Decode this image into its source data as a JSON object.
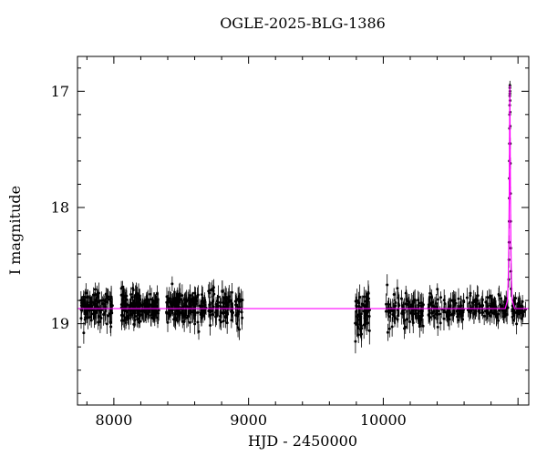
{
  "chart_data": {
    "type": "scatter",
    "title": "OGLE-2025-BLG-1386",
    "xlabel": "HJD - 2450000",
    "ylabel": "I magnitude",
    "xlim": [
      7730,
      11080
    ],
    "ylim": [
      16.7,
      19.7
    ],
    "y_axis_inverted": true,
    "grid": false,
    "point_color": "#000000",
    "model_color": "#ff00ff",
    "frame_color": "#000000",
    "x_minor_step": 200,
    "y_minor_step": 0.2,
    "x_major_ticks": [
      {
        "value": 8000,
        "label": "8000"
      },
      {
        "value": 9000,
        "label": "9000"
      },
      {
        "value": 10000,
        "label": "10000"
      },
      {
        "value": 11000,
        "label": ""
      }
    ],
    "y_major_ticks": [
      {
        "value": 17,
        "label": "17"
      },
      {
        "value": 18,
        "label": "18"
      },
      {
        "value": 19,
        "label": "19"
      }
    ],
    "baseline_mag": 18.87,
    "clusters": [
      {
        "x_min": 7755,
        "x_max": 7990,
        "n": 120,
        "mean_mag": 18.86,
        "sigma_mag": 0.065,
        "err_min": 0.05,
        "err_max": 0.1
      },
      {
        "x_min": 8055,
        "x_max": 8205,
        "n": 100,
        "mean_mag": 18.85,
        "sigma_mag": 0.07,
        "err_min": 0.05,
        "err_max": 0.1
      },
      {
        "x_min": 8210,
        "x_max": 8335,
        "n": 70,
        "mean_mag": 18.86,
        "sigma_mag": 0.06,
        "err_min": 0.05,
        "err_max": 0.1
      },
      {
        "x_min": 8385,
        "x_max": 8545,
        "n": 85,
        "mean_mag": 18.85,
        "sigma_mag": 0.065,
        "err_min": 0.05,
        "err_max": 0.1
      },
      {
        "x_min": 8550,
        "x_max": 8685,
        "n": 70,
        "mean_mag": 18.86,
        "sigma_mag": 0.06,
        "err_min": 0.05,
        "err_max": 0.1
      },
      {
        "x_min": 8700,
        "x_max": 8885,
        "n": 85,
        "mean_mag": 18.85,
        "sigma_mag": 0.065,
        "err_min": 0.05,
        "err_max": 0.1
      },
      {
        "x_min": 8900,
        "x_max": 8955,
        "n": 22,
        "mean_mag": 18.86,
        "sigma_mag": 0.1,
        "err_min": 0.06,
        "err_max": 0.11
      },
      {
        "x_min": 9790,
        "x_max": 9900,
        "n": 60,
        "mean_mag": 18.93,
        "sigma_mag": 0.12,
        "err_min": 0.06,
        "err_max": 0.12
      },
      {
        "x_min": 10020,
        "x_max": 10300,
        "n": 100,
        "mean_mag": 18.88,
        "sigma_mag": 0.07,
        "err_min": 0.05,
        "err_max": 0.1
      },
      {
        "x_min": 10330,
        "x_max": 10600,
        "n": 90,
        "mean_mag": 18.87,
        "sigma_mag": 0.06,
        "err_min": 0.05,
        "err_max": 0.1
      },
      {
        "x_min": 10620,
        "x_max": 10845,
        "n": 80,
        "mean_mag": 18.86,
        "sigma_mag": 0.055,
        "err_min": 0.05,
        "err_max": 0.09
      },
      {
        "x_min": 10850,
        "x_max": 10925,
        "n": 30,
        "mean_mag": 18.86,
        "sigma_mag": 0.05,
        "err_min": 0.05,
        "err_max": 0.09
      },
      {
        "x_min": 10955,
        "x_max": 11065,
        "n": 40,
        "mean_mag": 18.86,
        "sigma_mag": 0.05,
        "err_min": 0.05,
        "err_max": 0.09
      }
    ],
    "event_points": [
      [
        10931,
        18.62,
        0.07
      ],
      [
        10932.5,
        18.45,
        0.07
      ],
      [
        10933.5,
        18.3,
        0.06
      ],
      [
        10934.5,
        18.12,
        0.06
      ],
      [
        10935.5,
        17.92,
        0.05
      ],
      [
        10936,
        17.75,
        0.05
      ],
      [
        10936.5,
        17.6,
        0.05
      ],
      [
        10937,
        17.45,
        0.05
      ],
      [
        10937.5,
        17.32,
        0.04
      ],
      [
        10938,
        17.2,
        0.04
      ],
      [
        10938.5,
        17.12,
        0.04
      ],
      [
        10939,
        17.04,
        0.04
      ],
      [
        10939.5,
        16.97,
        0.04
      ],
      [
        10939.8,
        17.02,
        0.04
      ],
      [
        10940.1,
        16.95,
        0.04
      ],
      [
        10940.5,
        17.0,
        0.04
      ],
      [
        10941,
        17.08,
        0.04
      ],
      [
        10941.5,
        17.18,
        0.04
      ],
      [
        10942,
        17.3,
        0.05
      ],
      [
        10942.7,
        17.45,
        0.05
      ],
      [
        10943.5,
        17.62,
        0.05
      ],
      [
        10944.5,
        17.88,
        0.06
      ],
      [
        10945.5,
        18.12,
        0.06
      ],
      [
        10946.5,
        18.35,
        0.07
      ],
      [
        10947.5,
        18.55,
        0.07
      ],
      [
        10949,
        18.7,
        0.07
      ]
    ],
    "model": {
      "baseline_mag": 18.87,
      "peak_mag": 16.95,
      "t0": 10940,
      "points": [
        [
          7730,
          18.87
        ],
        [
          10905,
          18.87
        ],
        [
          10922,
          18.8
        ],
        [
          10928,
          18.6
        ],
        [
          10932,
          18.3
        ],
        [
          10935,
          17.9
        ],
        [
          10937,
          17.5
        ],
        [
          10938,
          17.25
        ],
        [
          10939.5,
          16.95
        ],
        [
          10941,
          17.25
        ],
        [
          10942,
          17.5
        ],
        [
          10944,
          17.9
        ],
        [
          10947,
          18.3
        ],
        [
          10951,
          18.6
        ],
        [
          10957,
          18.8
        ],
        [
          10975,
          18.87
        ],
        [
          11080,
          18.87
        ]
      ]
    }
  }
}
